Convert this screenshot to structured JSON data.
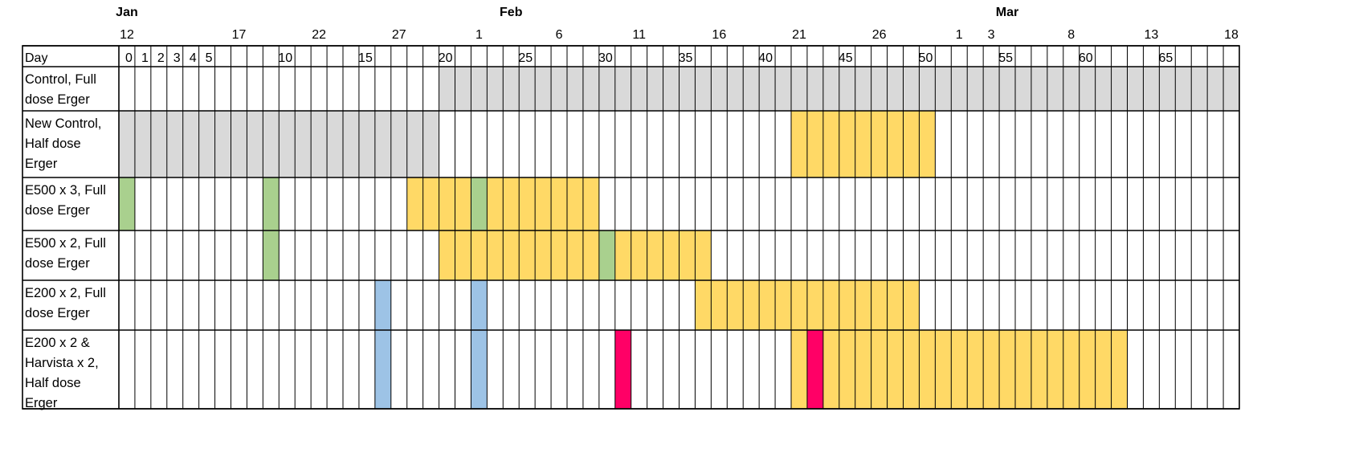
{
  "months": [
    {
      "label": "Jan",
      "col": 0
    },
    {
      "label": "Feb",
      "col": 24
    },
    {
      "label": "Mar",
      "col": 55
    }
  ],
  "date_labels": [
    {
      "label": "12",
      "col": 0
    },
    {
      "label": "17",
      "col": 7
    },
    {
      "label": "22",
      "col": 12
    },
    {
      "label": "27",
      "col": 17
    },
    {
      "label": "1",
      "col": 22
    },
    {
      "label": "6",
      "col": 27
    },
    {
      "label": "11",
      "col": 32
    },
    {
      "label": "16",
      "col": 37
    },
    {
      "label": "21",
      "col": 42
    },
    {
      "label": "26",
      "col": 47
    },
    {
      "label": "1",
      "col": 52
    },
    {
      "label": "3",
      "col": 54
    },
    {
      "label": "8",
      "col": 59
    },
    {
      "label": "13",
      "col": 64
    },
    {
      "label": "18",
      "col": 69
    }
  ],
  "day_header": "Day",
  "day_numbers": [
    {
      "label": "0",
      "col": 1
    },
    {
      "label": "1",
      "col": 2
    },
    {
      "label": "2",
      "col": 3
    },
    {
      "label": "3",
      "col": 4
    },
    {
      "label": "4",
      "col": 5
    },
    {
      "label": "5",
      "col": 6
    },
    {
      "label": "10",
      "col": 11
    },
    {
      "label": "15",
      "col": 16
    },
    {
      "label": "20",
      "col": 21
    },
    {
      "label": "25",
      "col": 26
    },
    {
      "label": "30",
      "col": 31
    },
    {
      "label": "35",
      "col": 36
    },
    {
      "label": "40",
      "col": 41
    },
    {
      "label": "45",
      "col": 46
    },
    {
      "label": "50",
      "col": 51
    },
    {
      "label": "55",
      "col": 56
    },
    {
      "label": "60",
      "col": 61
    },
    {
      "label": "65",
      "col": 66
    }
  ],
  "legend_colors": {
    "gray": "#d9d9d9",
    "yellow": "#ffd966",
    "green": "#a9d08e",
    "blue": "#9dc3e6",
    "pink": "#ff0066"
  },
  "rows": [
    {
      "label": [
        "Control, Full",
        "dose Erger"
      ],
      "fills": [
        {
          "start": 20,
          "end": 70,
          "color": "gray"
        }
      ]
    },
    {
      "label": [
        "New Control,",
        "Half dose",
        "Erger"
      ],
      "fills": [
        {
          "start": 0,
          "end": 20,
          "color": "gray"
        },
        {
          "start": 42,
          "end": 51,
          "color": "yellow"
        }
      ]
    },
    {
      "label": [
        "E500 x 3, Full",
        "dose Erger"
      ],
      "fills": [
        {
          "start": 0,
          "end": 1,
          "color": "green"
        },
        {
          "start": 9,
          "end": 10,
          "color": "green"
        },
        {
          "start": 18,
          "end": 22,
          "color": "yellow"
        },
        {
          "start": 22,
          "end": 23,
          "color": "green"
        },
        {
          "start": 23,
          "end": 30,
          "color": "yellow"
        }
      ]
    },
    {
      "label": [
        "E500 x 2, Full",
        "dose Erger"
      ],
      "fills": [
        {
          "start": 9,
          "end": 10,
          "color": "green"
        },
        {
          "start": 20,
          "end": 30,
          "color": "yellow"
        },
        {
          "start": 30,
          "end": 31,
          "color": "green"
        },
        {
          "start": 31,
          "end": 37,
          "color": "yellow"
        }
      ]
    },
    {
      "label": [
        "E200 x 2, Full",
        "dose Erger"
      ],
      "fills": [
        {
          "start": 16,
          "end": 17,
          "color": "blue"
        },
        {
          "start": 22,
          "end": 23,
          "color": "blue"
        },
        {
          "start": 36,
          "end": 50,
          "color": "yellow"
        }
      ]
    },
    {
      "label": [
        "E200 x 2 &",
        "Harvista x 2,",
        "Half dose",
        "Erger"
      ],
      "fills": [
        {
          "start": 16,
          "end": 17,
          "color": "blue"
        },
        {
          "start": 22,
          "end": 23,
          "color": "blue"
        },
        {
          "start": 31,
          "end": 32,
          "color": "pink"
        },
        {
          "start": 42,
          "end": 43,
          "color": "yellow"
        },
        {
          "start": 43,
          "end": 44,
          "color": "pink"
        },
        {
          "start": 44,
          "end": 63,
          "color": "yellow"
        }
      ]
    }
  ],
  "column_count": 70
}
